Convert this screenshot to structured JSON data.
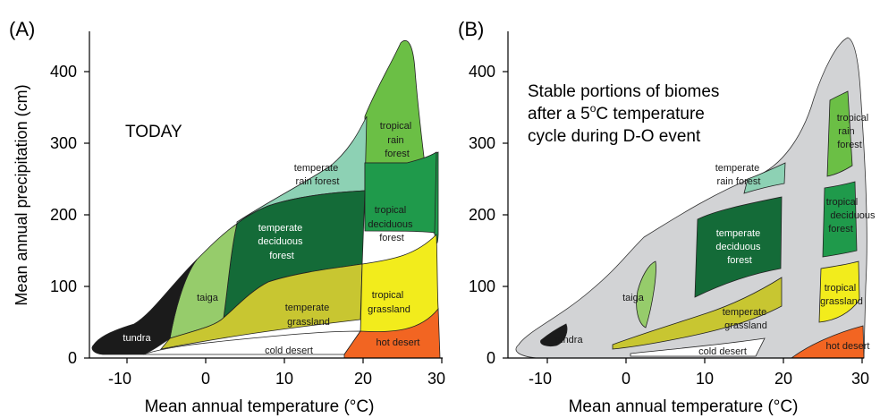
{
  "panels": {
    "a": {
      "label": "(A)",
      "title": "TODAY",
      "ylabel": "Mean annual precipitation (cm)",
      "xlabel": "Mean annual temperature (°C)",
      "xticks": [
        "-10",
        "0",
        "10",
        "20",
        "30"
      ],
      "yticks": [
        "0",
        "100",
        "200",
        "300",
        "400"
      ],
      "biomes": {
        "tropical_rain_forest": [
          "tropical",
          "rain",
          "forest"
        ],
        "temperate_rain_forest": [
          "temperate",
          "rain forest"
        ],
        "tropical_deciduous_forest": [
          "tropical",
          "deciduous",
          "forest"
        ],
        "temperate_deciduous_forest": [
          "temperate",
          "deciduous",
          "forest"
        ],
        "taiga": "taiga",
        "temperate_grassland": [
          "temperate",
          "grassland"
        ],
        "tropical_grassland": [
          "tropical",
          "grassland"
        ],
        "tundra": "tundra",
        "cold_desert": "cold desert",
        "hot_desert": "hot desert"
      }
    },
    "b": {
      "label": "(B)",
      "note_lines": [
        "Stable portions of biomes",
        "after a 5",
        "C temperature",
        "cycle during D-O event"
      ],
      "note_degree": "o",
      "xlabel": "Mean annual temperature (°C)",
      "xticks": [
        "-10",
        "0",
        "10",
        "20",
        "30"
      ],
      "yticks": [
        "0",
        "100",
        "200",
        "300",
        "400"
      ],
      "biomes": {
        "tropical_rain_forest": [
          "tropical",
          "rain",
          "forest"
        ],
        "temperate_rain_forest": [
          "temperate",
          "rain forest"
        ],
        "tropical_deciduous_forest": [
          "tropical",
          "deciduous",
          "forest"
        ],
        "temperate_deciduous_forest": [
          "temperate",
          "deciduous",
          "forest"
        ],
        "taiga": "taiga",
        "temperate_grassland": [
          "temperate",
          "grassland"
        ],
        "tropical_grassland": [
          "tropical",
          "grassland"
        ],
        "tundra": "tundra",
        "cold_desert": "cold desert",
        "hot_desert": "hot desert"
      }
    }
  },
  "colors": {
    "tropical_rain_forest": "#6bbf45",
    "temperate_rain_forest": "#8dd1b4",
    "tropical_deciduous_forest": "#1f9a4b",
    "temperate_deciduous_forest": "#146b38",
    "taiga": "#96cc6b",
    "temperate_grassland": "#c8c631",
    "tropical_grassland": "#f2ec1c",
    "tundra": "#1b1b1b",
    "cold_desert": "#ffffff",
    "hot_desert": "#f26522",
    "background_gray": "#d2d3d5"
  }
}
